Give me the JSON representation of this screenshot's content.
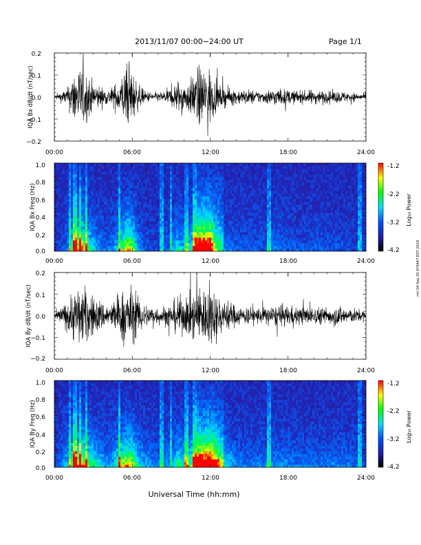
{
  "header": {
    "title": "2013/11/07  00:00−24:00 UT",
    "page": "Page 1/1"
  },
  "footer": {
    "xlabel": "Universal Time (hh:mm)"
  },
  "side_note": "mit 04 Sep 20 074447 DST 2019",
  "colorbar": {
    "label": "Log₁₀ Power",
    "ticks": [
      "-1.2",
      "-2.2",
      "-3.2",
      "-4.2"
    ],
    "colors": [
      "#ff0000",
      "#ffff00",
      "#00ff00",
      "#00e0ff",
      "#0050ff",
      "#2020b0",
      "#000000"
    ]
  },
  "chart_data": [
    {
      "type": "line",
      "ylabel": "IQA Bx dB/dt (nT/sec)",
      "x_ticks": [
        "00:00",
        "06:00",
        "12:00",
        "18:00",
        "24:00"
      ],
      "y_ticks": [
        "0.2",
        "0.1",
        "0.0",
        "−0.1",
        "−0.2"
      ],
      "xlim": [
        0,
        24
      ],
      "ylim": [
        -0.2,
        0.2
      ],
      "x": [
        0,
        1,
        1.6,
        2.2,
        3,
        4,
        4.5,
        5,
        5.5,
        5.9,
        6.5,
        7,
        8,
        9,
        9.5,
        10,
        10.5,
        11,
        11.5,
        11.8,
        12,
        12.4,
        12.8,
        13.5,
        14,
        15,
        16,
        17,
        18,
        19,
        20,
        21,
        22,
        23,
        24
      ],
      "envelope": [
        0.01,
        0.06,
        0.2,
        0.2,
        0.1,
        0.05,
        0.07,
        0.12,
        0.2,
        0.2,
        0.08,
        0.04,
        0.03,
        0.06,
        0.12,
        0.09,
        0.12,
        0.2,
        0.2,
        0.2,
        0.2,
        0.1,
        0.07,
        0.06,
        0.05,
        0.05,
        0.04,
        0.06,
        0.05,
        0.04,
        0.05,
        0.04,
        0.04,
        0.03,
        0.02
      ]
    },
    {
      "type": "heatmap",
      "ylabel": "IQA Bx Freq (Hz)",
      "x_ticks": [
        "00:00",
        "06:00",
        "12:00",
        "18:00",
        "24:00"
      ],
      "y_ticks": [
        "1.0",
        "0.8",
        "0.6",
        "0.4",
        "0.2",
        "0.0"
      ],
      "xlim": [
        0,
        24
      ],
      "ylim": [
        0,
        1.0
      ],
      "zlim": [
        -4.2,
        -1.2
      ]
    },
    {
      "type": "line",
      "ylabel": "IQA By dB/dt (nT/sec)",
      "x_ticks": [
        "00:00",
        "06:00",
        "12:00",
        "18:00",
        "24:00"
      ],
      "y_ticks": [
        "0.2",
        "0.1",
        "0.0",
        "−0.1",
        "−0.2"
      ],
      "xlim": [
        0,
        24
      ],
      "ylim": [
        -0.2,
        0.2
      ],
      "x": [
        0,
        1,
        1.6,
        2.2,
        3,
        4,
        4.5,
        5,
        5.5,
        5.9,
        6.5,
        7,
        8,
        9,
        9.5,
        10,
        10.5,
        11,
        11.5,
        11.8,
        12,
        12.4,
        12.8,
        13.5,
        14,
        15,
        16,
        17,
        18,
        19,
        20,
        21,
        22,
        23,
        24
      ],
      "envelope": [
        0.02,
        0.1,
        0.2,
        0.2,
        0.14,
        0.08,
        0.1,
        0.15,
        0.2,
        0.2,
        0.12,
        0.08,
        0.06,
        0.08,
        0.14,
        0.12,
        0.15,
        0.2,
        0.2,
        0.2,
        0.2,
        0.18,
        0.12,
        0.1,
        0.07,
        0.06,
        0.06,
        0.07,
        0.07,
        0.06,
        0.06,
        0.06,
        0.07,
        0.05,
        0.04
      ]
    },
    {
      "type": "heatmap",
      "ylabel": "IQA By Freq (Hz)",
      "x_ticks": [
        "00:00",
        "06:00",
        "12:00",
        "18:00",
        "24:00"
      ],
      "y_ticks": [
        "1.0",
        "0.8",
        "0.6",
        "0.4",
        "0.2",
        "0.0"
      ],
      "xlim": [
        0,
        24
      ],
      "ylim": [
        0,
        1.0
      ],
      "zlim": [
        -4.2,
        -1.2
      ]
    }
  ]
}
